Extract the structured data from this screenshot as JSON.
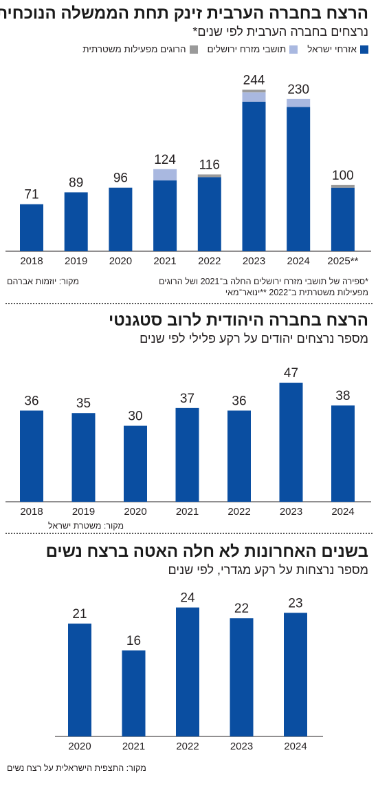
{
  "colors": {
    "israel_citizens": "#0a4ea1",
    "east_jerusalem": "#a9b8e0",
    "police_killed": "#9a9a9a",
    "axis": "#231f20"
  },
  "legend": {
    "israel_citizens": "אזרחי ישראל",
    "east_jerusalem": "תושבי מזרח ירושלים",
    "police_killed": "הרוגים מפעילות משטרתית"
  },
  "chart_data": [
    {
      "type": "bar",
      "stacked": true,
      "title": "הרצח בחברה הערבית זינק תחת הממשלה הנוכחית",
      "subtitle": "נרצחים בחברה הערבית לפי שנים*",
      "categories": [
        "2018",
        "2019",
        "2020",
        "2021",
        "2022",
        "2023",
        "2024",
        "2025**"
      ],
      "series": [
        {
          "name": "אזרחי ישראל",
          "values": [
            71,
            89,
            96,
            107,
            112,
            226,
            218,
            96
          ]
        },
        {
          "name": "תושבי מזרח ירושלים",
          "values": [
            0,
            0,
            0,
            17,
            0,
            14,
            12,
            0
          ]
        },
        {
          "name": "הרוגים מפעילות משטרתית",
          "values": [
            0,
            0,
            0,
            0,
            4,
            4,
            0,
            4
          ]
        }
      ],
      "totals": [
        "71",
        "89",
        "96",
        "124",
        "116",
        "244",
        "230",
        "100"
      ],
      "ylim": [
        0,
        260
      ],
      "source": "מקור: יוזמות אברהם",
      "footnote_line1": "*ספירה של תושבי מזרח ירושלים החלה ב־2021 ושל הרוגים",
      "footnote_line2": "מפעילות משטרתית ב־2022 **ינואר־מאי"
    },
    {
      "type": "bar",
      "title": "הרצח בחברה היהודית לרוב סטגנטי",
      "subtitle": "מספר נרצחים יהודים על רקע פלילי לפי שנים",
      "categories": [
        "2018",
        "2019",
        "2020",
        "2021",
        "2022",
        "2023",
        "2024"
      ],
      "values": [
        36,
        35,
        30,
        37,
        36,
        47,
        38
      ],
      "labels": [
        "36",
        "35",
        "30",
        "37",
        "36",
        "47",
        "38"
      ],
      "ylim": [
        0,
        50
      ],
      "source": "מקור: משטרת ישראל"
    },
    {
      "type": "bar",
      "title": "בשנים האחרונות לא חלה האטה ברצח נשים",
      "subtitle": "מספר נרצחות על רקע מגדרי, לפי שנים",
      "categories": [
        "2020",
        "2021",
        "2022",
        "2023",
        "2024"
      ],
      "values": [
        21,
        16,
        24,
        22,
        23
      ],
      "labels": [
        "21",
        "16",
        "24",
        "22",
        "23"
      ],
      "ylim": [
        0,
        26
      ],
      "source": "מקור: התצפית הישראלית על רצח נשים"
    }
  ]
}
